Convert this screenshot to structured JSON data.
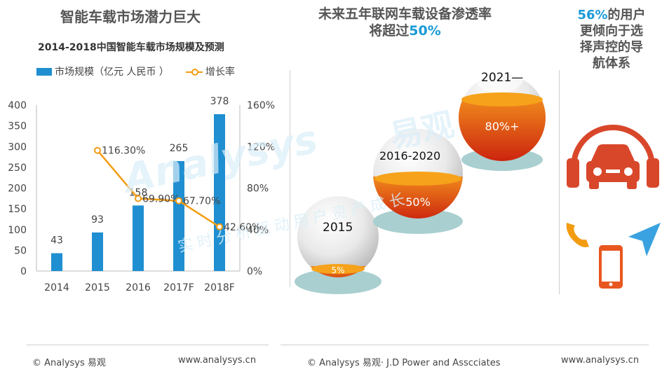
{
  "left": {
    "heading": "智能车载市场潜力巨大",
    "chart_title": "2014-2018中国智能车载市场规模及预测",
    "legend": {
      "bar": "市场规模（亿元 人民币 ）",
      "line": "增长率"
    }
  },
  "middle": {
    "heading_line1": "未来五年联网车载设备渗透率",
    "heading_line2_prefix": "将超过",
    "heading_line2_highlight": "50%",
    "balls": [
      {
        "label": "2015",
        "percent": "5%"
      },
      {
        "label": "2016-2020",
        "percent": "50%"
      },
      {
        "label": "2021—",
        "percent": "80%+"
      }
    ]
  },
  "right": {
    "heading_highlight": "56%",
    "heading_l1": "的用户",
    "heading_l2": "更倾向于选",
    "heading_l3": "择声控的导",
    "heading_l4": "航体系",
    "icons": [
      "headphones-car-icon",
      "phone-handset-icon",
      "smartphone-icon",
      "navigation-arrow-icon"
    ]
  },
  "watermark": {
    "brand": "Analysys",
    "brand_cn": "易观",
    "slogan": "实时分析驱动用户资产成长"
  },
  "footer": {
    "left_copyright": "© Analysys 易观",
    "left_url": "www.analysys.cn",
    "middle_copyright": "© Analysys 易观· J.D Power and Asscciates",
    "right_url": "www.analysys.cn"
  },
  "colors": {
    "bar": "#1f8fd1",
    "line": "#f39c12",
    "accent_blue": "#1a9ad6",
    "accent_orange": "#e8571f"
  },
  "chart_data": {
    "type": "bar",
    "categories": [
      "2014",
      "2015",
      "2016",
      "2017F",
      "2018F"
    ],
    "series": [
      {
        "name": "市场规模（亿元 人民币 ）",
        "type": "bar",
        "axis": "left",
        "values": [
          43,
          93,
          158,
          265,
          378
        ],
        "labels": [
          "43",
          "93",
          "158",
          "265",
          "378"
        ]
      },
      {
        "name": "增长率",
        "type": "line",
        "axis": "right",
        "values": [
          null,
          116.3,
          69.9,
          67.7,
          42.6
        ],
        "labels": [
          "",
          "116.30%",
          "69.90%",
          "67.70%",
          "42.60%"
        ]
      }
    ],
    "yleft": {
      "min": 0,
      "max": 400,
      "ticks": [
        "0",
        "50",
        "100",
        "150",
        "200",
        "250",
        "300",
        "350",
        "400"
      ]
    },
    "yright": {
      "min": 0,
      "max": 160,
      "ticks": [
        "0%",
        "40%",
        "80%",
        "120%",
        "160%"
      ]
    },
    "grid": false,
    "legend_position": "top-left"
  }
}
